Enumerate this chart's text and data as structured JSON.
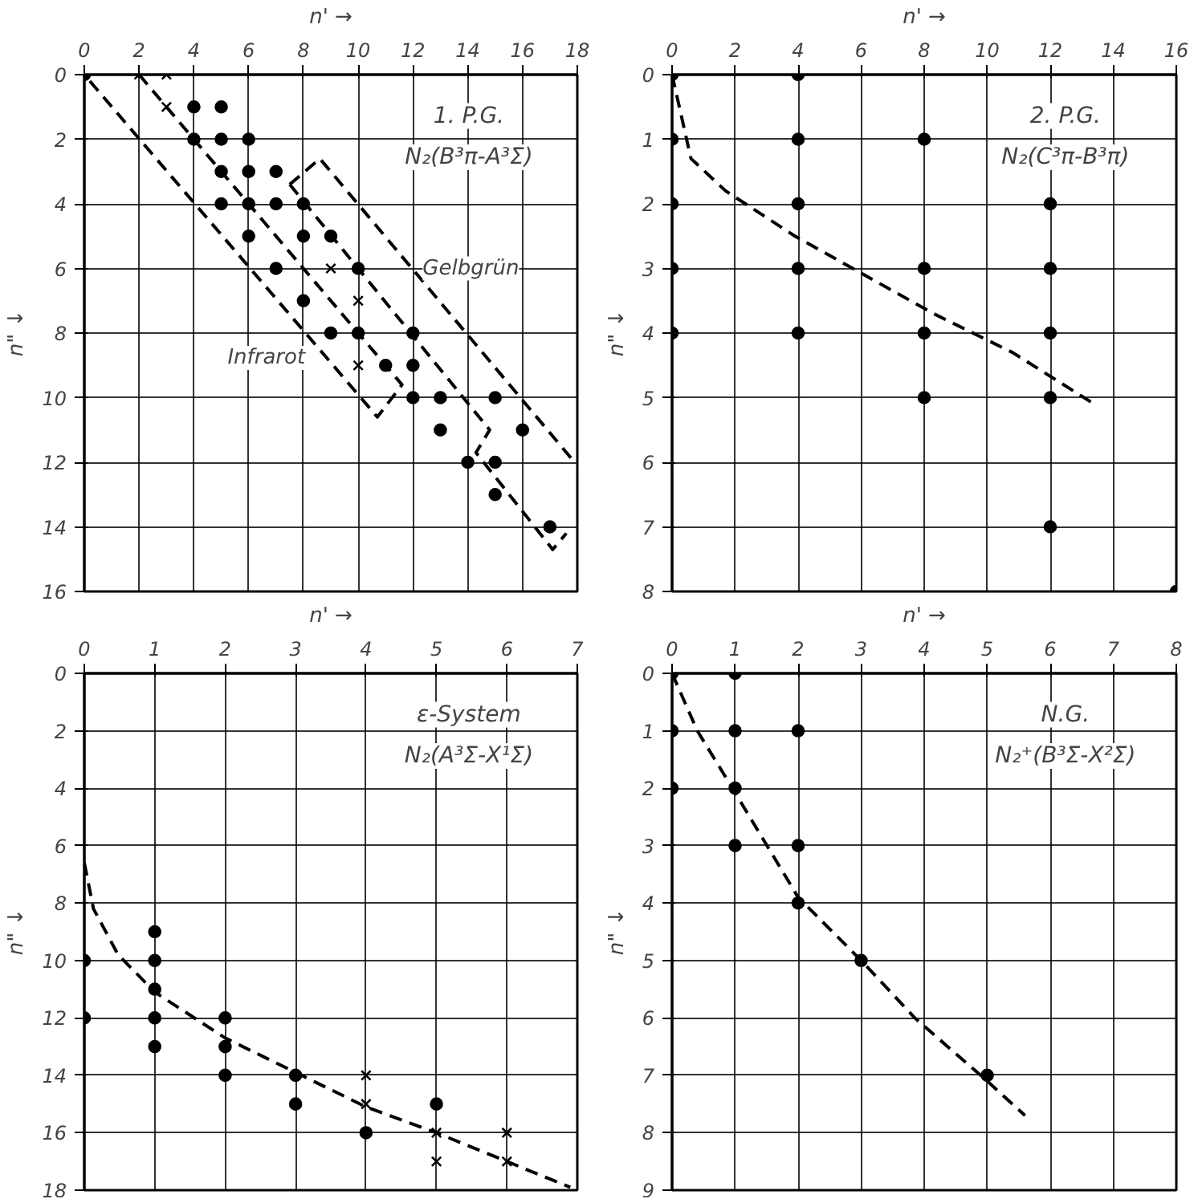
{
  "chart_data": [
    {
      "type": "scatter",
      "title": "1. P.G.",
      "subtitle": "N₂(B³π-A³Σ)",
      "xlabel": "n' →",
      "ylabel": "n\" ↓",
      "xlim": [
        0,
        18
      ],
      "ylim": [
        16,
        0
      ],
      "xticks": [
        0,
        2,
        4,
        6,
        8,
        10,
        12,
        14,
        16,
        18
      ],
      "yticks": [
        0,
        2,
        4,
        6,
        8,
        10,
        12,
        14,
        16
      ],
      "grid": true,
      "series": [
        {
          "type": "line",
          "color": "#000000",
          "line_style": "dashed",
          "x": [
            2,
            11.6,
            10.7,
            0.1
          ],
          "values": [
            0,
            9.6,
            10.6,
            0.1
          ]
        },
        {
          "type": "line",
          "color": "#000000",
          "line_style": "dashed",
          "x": [
            7.5,
            8.6,
            17.9
          ],
          "values": [
            3.4,
            2.6,
            12.0
          ]
        },
        {
          "type": "line",
          "color": "#000000",
          "line_style": "dashed",
          "x": [
            7.5,
            14.8,
            14.3,
            17.1,
            17.6
          ],
          "values": [
            3.4,
            11.0,
            11.7,
            14.7,
            14.2
          ]
        },
        {
          "color": "#000000",
          "marker": "circle",
          "x": [
            0,
            4,
            5,
            4,
            5,
            6,
            5,
            6,
            7,
            5,
            6,
            7,
            8,
            6,
            8,
            9,
            7,
            10,
            8,
            9,
            10,
            12,
            11,
            12,
            12,
            13,
            15,
            13,
            16,
            14,
            15,
            15,
            17
          ],
          "values": [
            0,
            1,
            1,
            2,
            2,
            2,
            3,
            3,
            3,
            4,
            4,
            4,
            4,
            5,
            5,
            5,
            6,
            6,
            7,
            8,
            8,
            8,
            9,
            9,
            10,
            10,
            10,
            11,
            11,
            12,
            12,
            13,
            14
          ]
        },
        {
          "color": "#000000",
          "marker": "cross",
          "x": [
            2,
            3,
            3,
            9,
            10,
            10
          ],
          "values": [
            0,
            0,
            1,
            6,
            7,
            9
          ]
        }
      ],
      "annotations": [
        {
          "text": "Gelbgrün",
          "x": 12,
          "y": 6
        },
        {
          "text": "Infrarot",
          "x": 8.3,
          "y": 8.2
        }
      ]
    },
    {
      "type": "scatter",
      "title": "2. P.G.",
      "subtitle": "N₂(C³π-B³π)",
      "xlabel": "n' →",
      "ylabel": "n\" ↓",
      "xlim": [
        0,
        16
      ],
      "ylim": [
        8,
        0
      ],
      "xticks": [
        0,
        2,
        4,
        6,
        8,
        10,
        12,
        14,
        16
      ],
      "yticks": [
        0,
        1,
        2,
        3,
        4,
        5,
        6,
        7,
        8
      ],
      "grid": true,
      "series": [
        {
          "type": "line",
          "color": "#000000",
          "line_style": "dashed",
          "x": [
            0,
            0.6,
            1.7,
            3.9,
            6.1,
            8.3,
            10.8,
            13.4
          ],
          "values": [
            0,
            1.3,
            1.8,
            2.5,
            3.1,
            3.7,
            4.3,
            5.1
          ]
        },
        {
          "color": "#000000",
          "marker": "circle",
          "x": [
            0,
            4,
            0,
            4,
            8,
            0,
            4,
            12,
            0,
            4,
            8,
            12,
            0,
            4,
            8,
            12,
            8,
            12,
            12,
            16
          ],
          "values": [
            0,
            0,
            1,
            1,
            1,
            2,
            2,
            2,
            3,
            3,
            3,
            3,
            4,
            4,
            4,
            4,
            5,
            5,
            7,
            8
          ]
        }
      ]
    },
    {
      "type": "scatter",
      "title": "ε-System",
      "subtitle": "N₂(A³Σ-X¹Σ)",
      "xlabel": "n' →",
      "ylabel": "n\" ↓",
      "xlim": [
        0,
        7
      ],
      "ylim": [
        18,
        0
      ],
      "xticks": [
        0,
        1,
        2,
        3,
        4,
        5,
        6,
        7
      ],
      "yticks": [
        0,
        2,
        4,
        6,
        8,
        10,
        12,
        14,
        16,
        18
      ],
      "grid": true,
      "series": [
        {
          "type": "line",
          "color": "#000000",
          "line_style": "dashed",
          "x": [
            0,
            0.13,
            0.48,
            1,
            2,
            3,
            4,
            5,
            5.9,
            6.9
          ],
          "values": [
            6.6,
            8.2,
            9.8,
            11.1,
            12.7,
            13.9,
            15.1,
            16,
            16.9,
            17.9
          ]
        },
        {
          "color": "#000000",
          "marker": "circle",
          "x": [
            0,
            0,
            1,
            1,
            1,
            1,
            1,
            2,
            2,
            2,
            3,
            3,
            4,
            5
          ],
          "values": [
            10,
            12,
            9,
            10,
            11,
            12,
            13,
            12,
            13,
            14,
            14,
            15,
            16,
            15
          ]
        },
        {
          "color": "#000000",
          "marker": "cross",
          "x": [
            4,
            4,
            5,
            5,
            6,
            6
          ],
          "values": [
            14,
            15,
            16,
            17,
            16,
            17
          ]
        }
      ]
    },
    {
      "type": "scatter",
      "title": "N.G.",
      "subtitle": "N₂⁺(B³Σ-X²Σ)",
      "xlabel": "n' →",
      "ylabel": "n\" ↓",
      "xlim": [
        0,
        8
      ],
      "ylim": [
        9,
        0
      ],
      "xticks": [
        0,
        1,
        2,
        3,
        4,
        5,
        6,
        7,
        8
      ],
      "yticks": [
        0,
        1,
        2,
        3,
        4,
        5,
        6,
        7,
        8,
        9
      ],
      "grid": true,
      "series": [
        {
          "type": "line",
          "color": "#000000",
          "line_style": "dashed",
          "x": [
            0,
            0.4,
            0.93,
            2,
            3,
            3.85,
            5,
            5.6
          ],
          "values": [
            0,
            1,
            1.95,
            3.9,
            5,
            6,
            7.1,
            7.7
          ]
        },
        {
          "color": "#000000",
          "marker": "circle",
          "x": [
            0,
            1,
            0,
            1,
            2,
            0,
            1,
            1,
            2,
            2,
            3,
            5
          ],
          "values": [
            0,
            0,
            1,
            1,
            1,
            2,
            2,
            3,
            3,
            4,
            5,
            7
          ]
        }
      ]
    }
  ]
}
